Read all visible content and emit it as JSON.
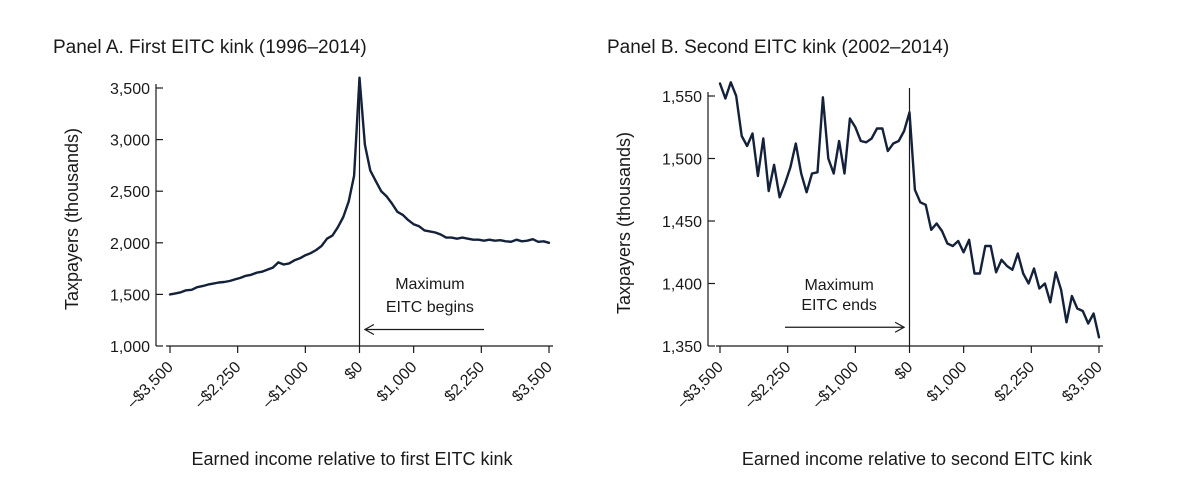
{
  "chart_data": [
    {
      "type": "line",
      "title": "Panel A. First EITC kink (1996–2014)",
      "xlabel": "Earned income relative to first EITC kink",
      "ylabel": "Taxpayers (thousands)",
      "xlim": [
        -3500,
        3500
      ],
      "ylim": [
        1000,
        3500
      ],
      "xticks": [
        -3500,
        -2250,
        -1000,
        0,
        1000,
        2250,
        3500
      ],
      "xtick_labels": [
        "–$3,500",
        "–$2,250",
        "–$1,000",
        "$0",
        "$1,000",
        "$2,250",
        "$3,500"
      ],
      "yticks": [
        1000,
        1500,
        2000,
        2500,
        3000,
        3500
      ],
      "ytick_labels": [
        "1,000",
        "1,500",
        "2,000",
        "2,500",
        "3,000",
        "3,500"
      ],
      "kink_x": 0,
      "annotation": {
        "lines": [
          "Maximum",
          "EITC begins"
        ],
        "arrow_from_x": 2300,
        "arrow_to_x": 100,
        "arrow_y": 1160,
        "text_x": 1300,
        "text_y": [
          1550,
          1330
        ]
      },
      "series": [
        {
          "x": [
            -3500,
            -3400,
            -3300,
            -3200,
            -3100,
            -3000,
            -2900,
            -2800,
            -2700,
            -2600,
            -2500,
            -2400,
            -2300,
            -2200,
            -2100,
            -2000,
            -1900,
            -1800,
            -1700,
            -1600,
            -1500,
            -1400,
            -1300,
            -1200,
            -1100,
            -1000,
            -900,
            -800,
            -700,
            -600,
            -500,
            -400,
            -300,
            -200,
            -100,
            0,
            100,
            200,
            300,
            400,
            500,
            600,
            700,
            800,
            900,
            1000,
            1100,
            1200,
            1300,
            1400,
            1500,
            1600,
            1700,
            1800,
            1900,
            2000,
            2100,
            2200,
            2300,
            2400,
            2500,
            2600,
            2700,
            2800,
            2900,
            3000,
            3100,
            3200,
            3300,
            3400,
            3500
          ],
          "values": [
            1500,
            1510,
            1520,
            1540,
            1545,
            1570,
            1580,
            1595,
            1605,
            1615,
            1620,
            1630,
            1645,
            1660,
            1680,
            1690,
            1710,
            1720,
            1740,
            1760,
            1810,
            1790,
            1800,
            1830,
            1850,
            1880,
            1900,
            1930,
            1970,
            2040,
            2070,
            2150,
            2250,
            2400,
            2650,
            3600,
            2950,
            2700,
            2600,
            2500,
            2450,
            2380,
            2300,
            2270,
            2220,
            2180,
            2160,
            2120,
            2110,
            2100,
            2080,
            2050,
            2050,
            2040,
            2050,
            2040,
            2030,
            2030,
            2020,
            2030,
            2020,
            2025,
            2015,
            2010,
            2030,
            2015,
            2020,
            2035,
            2010,
            2015,
            2000
          ]
        }
      ]
    },
    {
      "type": "line",
      "title": "Panel B. Second EITC kink (2002–2014)",
      "xlabel": "Earned income relative to second EITC kink",
      "ylabel": "Taxpayers (thousands)",
      "xlim": [
        -3500,
        3500
      ],
      "ylim": [
        1350,
        1550
      ],
      "xticks": [
        -3500,
        -2250,
        -1000,
        0,
        1000,
        2250,
        3500
      ],
      "xtick_labels": [
        "–$3,500",
        "–$2,250",
        "–$1,000",
        "$0",
        "$1,000",
        "$2,250",
        "$3,500"
      ],
      "yticks": [
        1350,
        1400,
        1450,
        1500,
        1550
      ],
      "ytick_labels": [
        "1,350",
        "1,400",
        "1,450",
        "1,500",
        "1,550"
      ],
      "kink_x": 0,
      "annotation": {
        "lines": [
          "Maximum",
          "EITC ends"
        ],
        "arrow_from_x": -2300,
        "arrow_to_x": -100,
        "arrow_y": 1365,
        "text_x": -1300,
        "text_y": [
          1395,
          1379
        ]
      },
      "series": [
        {
          "x": [
            -3500,
            -3400,
            -3300,
            -3200,
            -3100,
            -3000,
            -2900,
            -2800,
            -2700,
            -2600,
            -2500,
            -2400,
            -2300,
            -2200,
            -2100,
            -2000,
            -1900,
            -1800,
            -1700,
            -1600,
            -1500,
            -1400,
            -1300,
            -1200,
            -1100,
            -1000,
            -900,
            -800,
            -700,
            -600,
            -500,
            -400,
            -300,
            -200,
            -100,
            0,
            100,
            200,
            300,
            400,
            500,
            600,
            700,
            800,
            900,
            1000,
            1100,
            1200,
            1300,
            1400,
            1500,
            1600,
            1700,
            1800,
            1900,
            2000,
            2100,
            2200,
            2300,
            2400,
            2500,
            2600,
            2700,
            2800,
            2900,
            3000,
            3100,
            3200,
            3300,
            3400,
            3500
          ],
          "values": [
            1560,
            1548,
            1561,
            1550,
            1518,
            1510,
            1520,
            1486,
            1516,
            1474,
            1495,
            1469,
            1480,
            1493,
            1512,
            1488,
            1473,
            1488,
            1489,
            1549,
            1500,
            1488,
            1514,
            1488,
            1532,
            1525,
            1514,
            1513,
            1516,
            1524,
            1524,
            1506,
            1512,
            1514,
            1522,
            1537,
            1475,
            1465,
            1463,
            1443,
            1448,
            1442,
            1432,
            1430,
            1434,
            1425,
            1435,
            1408,
            1408,
            1430,
            1430,
            1409,
            1419,
            1414,
            1411,
            1424,
            1408,
            1400,
            1412,
            1396,
            1400,
            1385,
            1409,
            1395,
            1369,
            1390,
            1380,
            1378,
            1368,
            1376,
            1357
          ]
        }
      ]
    }
  ]
}
